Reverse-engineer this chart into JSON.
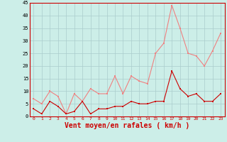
{
  "x": [
    0,
    1,
    2,
    3,
    4,
    5,
    6,
    7,
    8,
    9,
    10,
    11,
    12,
    13,
    14,
    15,
    16,
    17,
    18,
    19,
    20,
    21,
    22,
    23
  ],
  "rafales": [
    7,
    5,
    10,
    8,
    1,
    9,
    6,
    11,
    9,
    9,
    16,
    9,
    16,
    14,
    13,
    25,
    29,
    44,
    35,
    25,
    24,
    20,
    26,
    33
  ],
  "moyen": [
    3,
    1,
    6,
    4,
    1,
    2,
    6,
    1,
    3,
    3,
    4,
    4,
    6,
    5,
    5,
    6,
    6,
    18,
    11,
    8,
    9,
    6,
    6,
    9
  ],
  "line_color_rafales": "#f08080",
  "line_color_moyen": "#cc0000",
  "bg_color": "#cceee8",
  "grid_color": "#aacccc",
  "xlabel": "Vent moyen/en rafales ( km/h )",
  "xlabel_color": "#cc0000",
  "xlabel_fontsize": 7,
  "ylim": [
    0,
    45
  ],
  "yticks": [
    0,
    5,
    10,
    15,
    20,
    25,
    30,
    35,
    40,
    45
  ],
  "xticks": [
    0,
    1,
    2,
    3,
    4,
    5,
    6,
    7,
    8,
    9,
    10,
    11,
    12,
    13,
    14,
    15,
    16,
    17,
    18,
    19,
    20,
    21,
    22,
    23
  ]
}
